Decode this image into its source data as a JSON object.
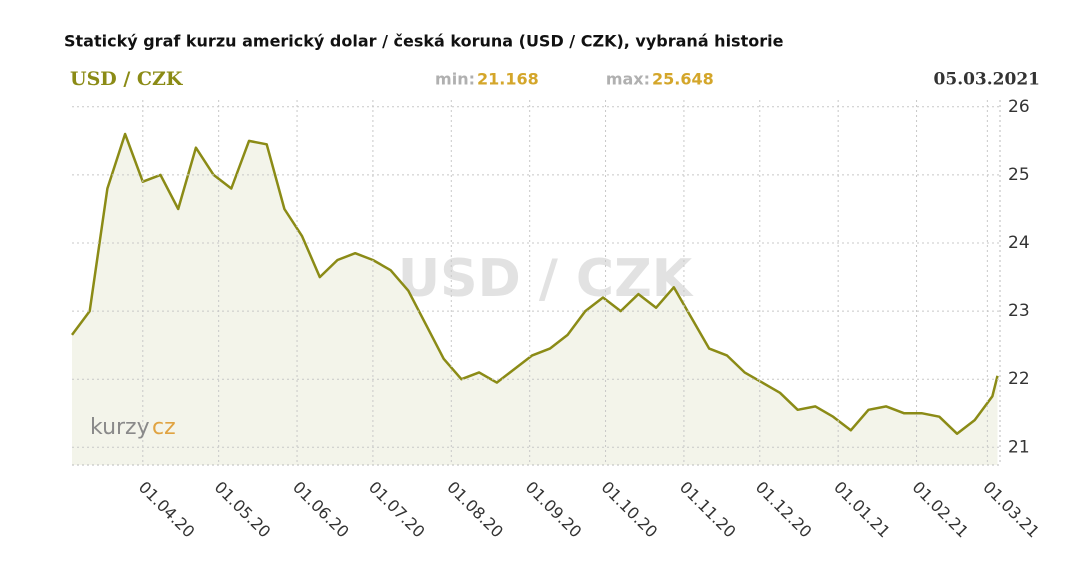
{
  "chart_data": {
    "type": "line",
    "title": "Statický graf kurzu americký dolar / česká koruna (USD / CZK), vybraná historie",
    "pair": "USD / CZK",
    "watermark": "USD / CZK",
    "min_label": "min:",
    "min_value": "21.168",
    "max_label": "max:",
    "max_value": "25.648",
    "date": "05.03.2021",
    "logo": [
      "kurzy",
      "cz"
    ],
    "x": [
      "04.03.20",
      "11.03.20",
      "18.03.20",
      "25.03.20",
      "01.04.20",
      "08.04.20",
      "15.04.20",
      "22.04.20",
      "29.04.20",
      "06.05.20",
      "13.05.20",
      "20.05.20",
      "27.05.20",
      "03.06.20",
      "10.06.20",
      "17.06.20",
      "24.06.20",
      "01.07.20",
      "08.07.20",
      "15.07.20",
      "22.07.20",
      "29.07.20",
      "05.08.20",
      "12.08.20",
      "19.08.20",
      "26.08.20",
      "02.09.20",
      "09.09.20",
      "16.09.20",
      "23.09.20",
      "30.09.20",
      "07.10.20",
      "14.10.20",
      "21.10.20",
      "28.10.20",
      "04.11.20",
      "11.11.20",
      "18.11.20",
      "25.11.20",
      "02.12.20",
      "09.12.20",
      "16.12.20",
      "23.12.20",
      "30.12.20",
      "06.01.21",
      "13.01.21",
      "20.01.21",
      "27.01.21",
      "03.02.21",
      "10.02.21",
      "17.02.21",
      "24.02.21",
      "03.03.21",
      "05.03.21"
    ],
    "series": [
      {
        "name": "USD / CZK",
        "color": "#8b8b16",
        "values": [
          22.65,
          23.0,
          24.8,
          25.6,
          24.9,
          25.0,
          24.5,
          25.4,
          25.0,
          24.8,
          25.5,
          25.45,
          24.5,
          24.1,
          23.5,
          23.75,
          23.85,
          23.75,
          23.6,
          23.3,
          22.8,
          22.3,
          22.0,
          22.1,
          21.95,
          22.15,
          22.35,
          22.45,
          22.65,
          23.0,
          23.2,
          23.0,
          23.25,
          23.05,
          23.35,
          22.9,
          22.45,
          22.35,
          22.1,
          21.95,
          21.8,
          21.55,
          21.6,
          21.45,
          21.25,
          21.55,
          21.6,
          21.5,
          21.5,
          21.45,
          21.2,
          21.4,
          21.75,
          22.05
        ]
      }
    ],
    "xlim": [
      "04.03.20",
      "06.03.21"
    ],
    "xticks": [
      "01.04.20",
      "01.05.20",
      "01.06.20",
      "01.07.20",
      "01.08.20",
      "01.09.20",
      "01.10.20",
      "01.11.20",
      "01.12.20",
      "01.01.21",
      "01.02.21",
      "01.03.21"
    ],
    "ylim": [
      20.74,
      26.1
    ],
    "yticks": [
      21,
      22,
      23,
      24,
      25,
      26
    ],
    "grid": true,
    "fill": "#f3f4ea"
  }
}
